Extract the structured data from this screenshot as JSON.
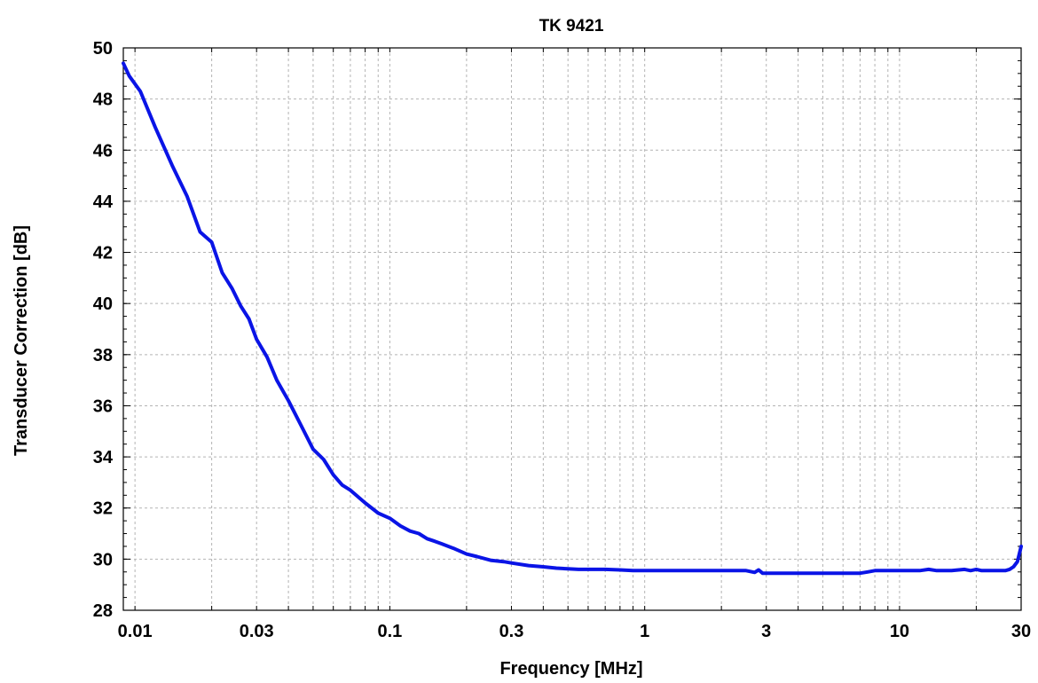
{
  "chart_data": {
    "type": "line",
    "title": "TK 9421",
    "xlabel": "Frequency [MHz]",
    "ylabel": "Transducer Correction [dB]",
    "x_scale": "log",
    "xlim": [
      0.009,
      30
    ],
    "ylim": [
      28,
      50
    ],
    "grid": true,
    "x_ticks": [
      0.01,
      0.03,
      0.1,
      0.3,
      1,
      3,
      10,
      30
    ],
    "x_tick_labels": [
      "0.01",
      "0.03",
      "0.1",
      "0.3",
      "1",
      "3",
      "10",
      "30"
    ],
    "y_ticks": [
      28,
      30,
      32,
      34,
      36,
      38,
      40,
      42,
      44,
      46,
      48,
      50
    ],
    "y_tick_labels": [
      "28",
      "30",
      "32",
      "34",
      "36",
      "38",
      "40",
      "42",
      "44",
      "46",
      "48",
      "50"
    ],
    "colors": {
      "series": "#0a14e6",
      "grid": "#b4b4b4",
      "frame": "#000000"
    },
    "series": [
      {
        "x": [
          0.009,
          0.0095,
          0.0105,
          0.012,
          0.014,
          0.016,
          0.018,
          0.02,
          0.022,
          0.024,
          0.026,
          0.028,
          0.03,
          0.033,
          0.036,
          0.04,
          0.045,
          0.05,
          0.055,
          0.06,
          0.065,
          0.07,
          0.08,
          0.09,
          0.1,
          0.11,
          0.12,
          0.13,
          0.14,
          0.15,
          0.16,
          0.18,
          0.2,
          0.22,
          0.25,
          0.28,
          0.3,
          0.35,
          0.4,
          0.45,
          0.5,
          0.55,
          0.6,
          0.7,
          0.8,
          0.9,
          1,
          1.5,
          2,
          2.5,
          2.7,
          2.8,
          2.9,
          3,
          4,
          5,
          6,
          7,
          7.5,
          8,
          10,
          12,
          13,
          14,
          15,
          16,
          18,
          19,
          20,
          21,
          22,
          24,
          26,
          27,
          28,
          29,
          30
        ],
        "y": [
          49.4,
          48.9,
          48.3,
          46.9,
          45.4,
          44.2,
          42.8,
          42.4,
          41.2,
          40.6,
          39.9,
          39.4,
          38.6,
          37.9,
          37.0,
          36.2,
          35.2,
          34.3,
          33.9,
          33.3,
          32.9,
          32.7,
          32.2,
          31.8,
          31.6,
          31.3,
          31.1,
          31.0,
          30.8,
          30.7,
          30.6,
          30.4,
          30.2,
          30.1,
          29.95,
          29.9,
          29.85,
          29.75,
          29.7,
          29.65,
          29.62,
          29.6,
          29.6,
          29.6,
          29.58,
          29.55,
          29.55,
          29.55,
          29.55,
          29.55,
          29.48,
          29.58,
          29.45,
          29.45,
          29.45,
          29.45,
          29.45,
          29.45,
          29.5,
          29.55,
          29.55,
          29.55,
          29.6,
          29.55,
          29.55,
          29.55,
          29.6,
          29.55,
          29.6,
          29.55,
          29.55,
          29.55,
          29.55,
          29.6,
          29.7,
          29.9,
          30.5
        ]
      }
    ]
  }
}
